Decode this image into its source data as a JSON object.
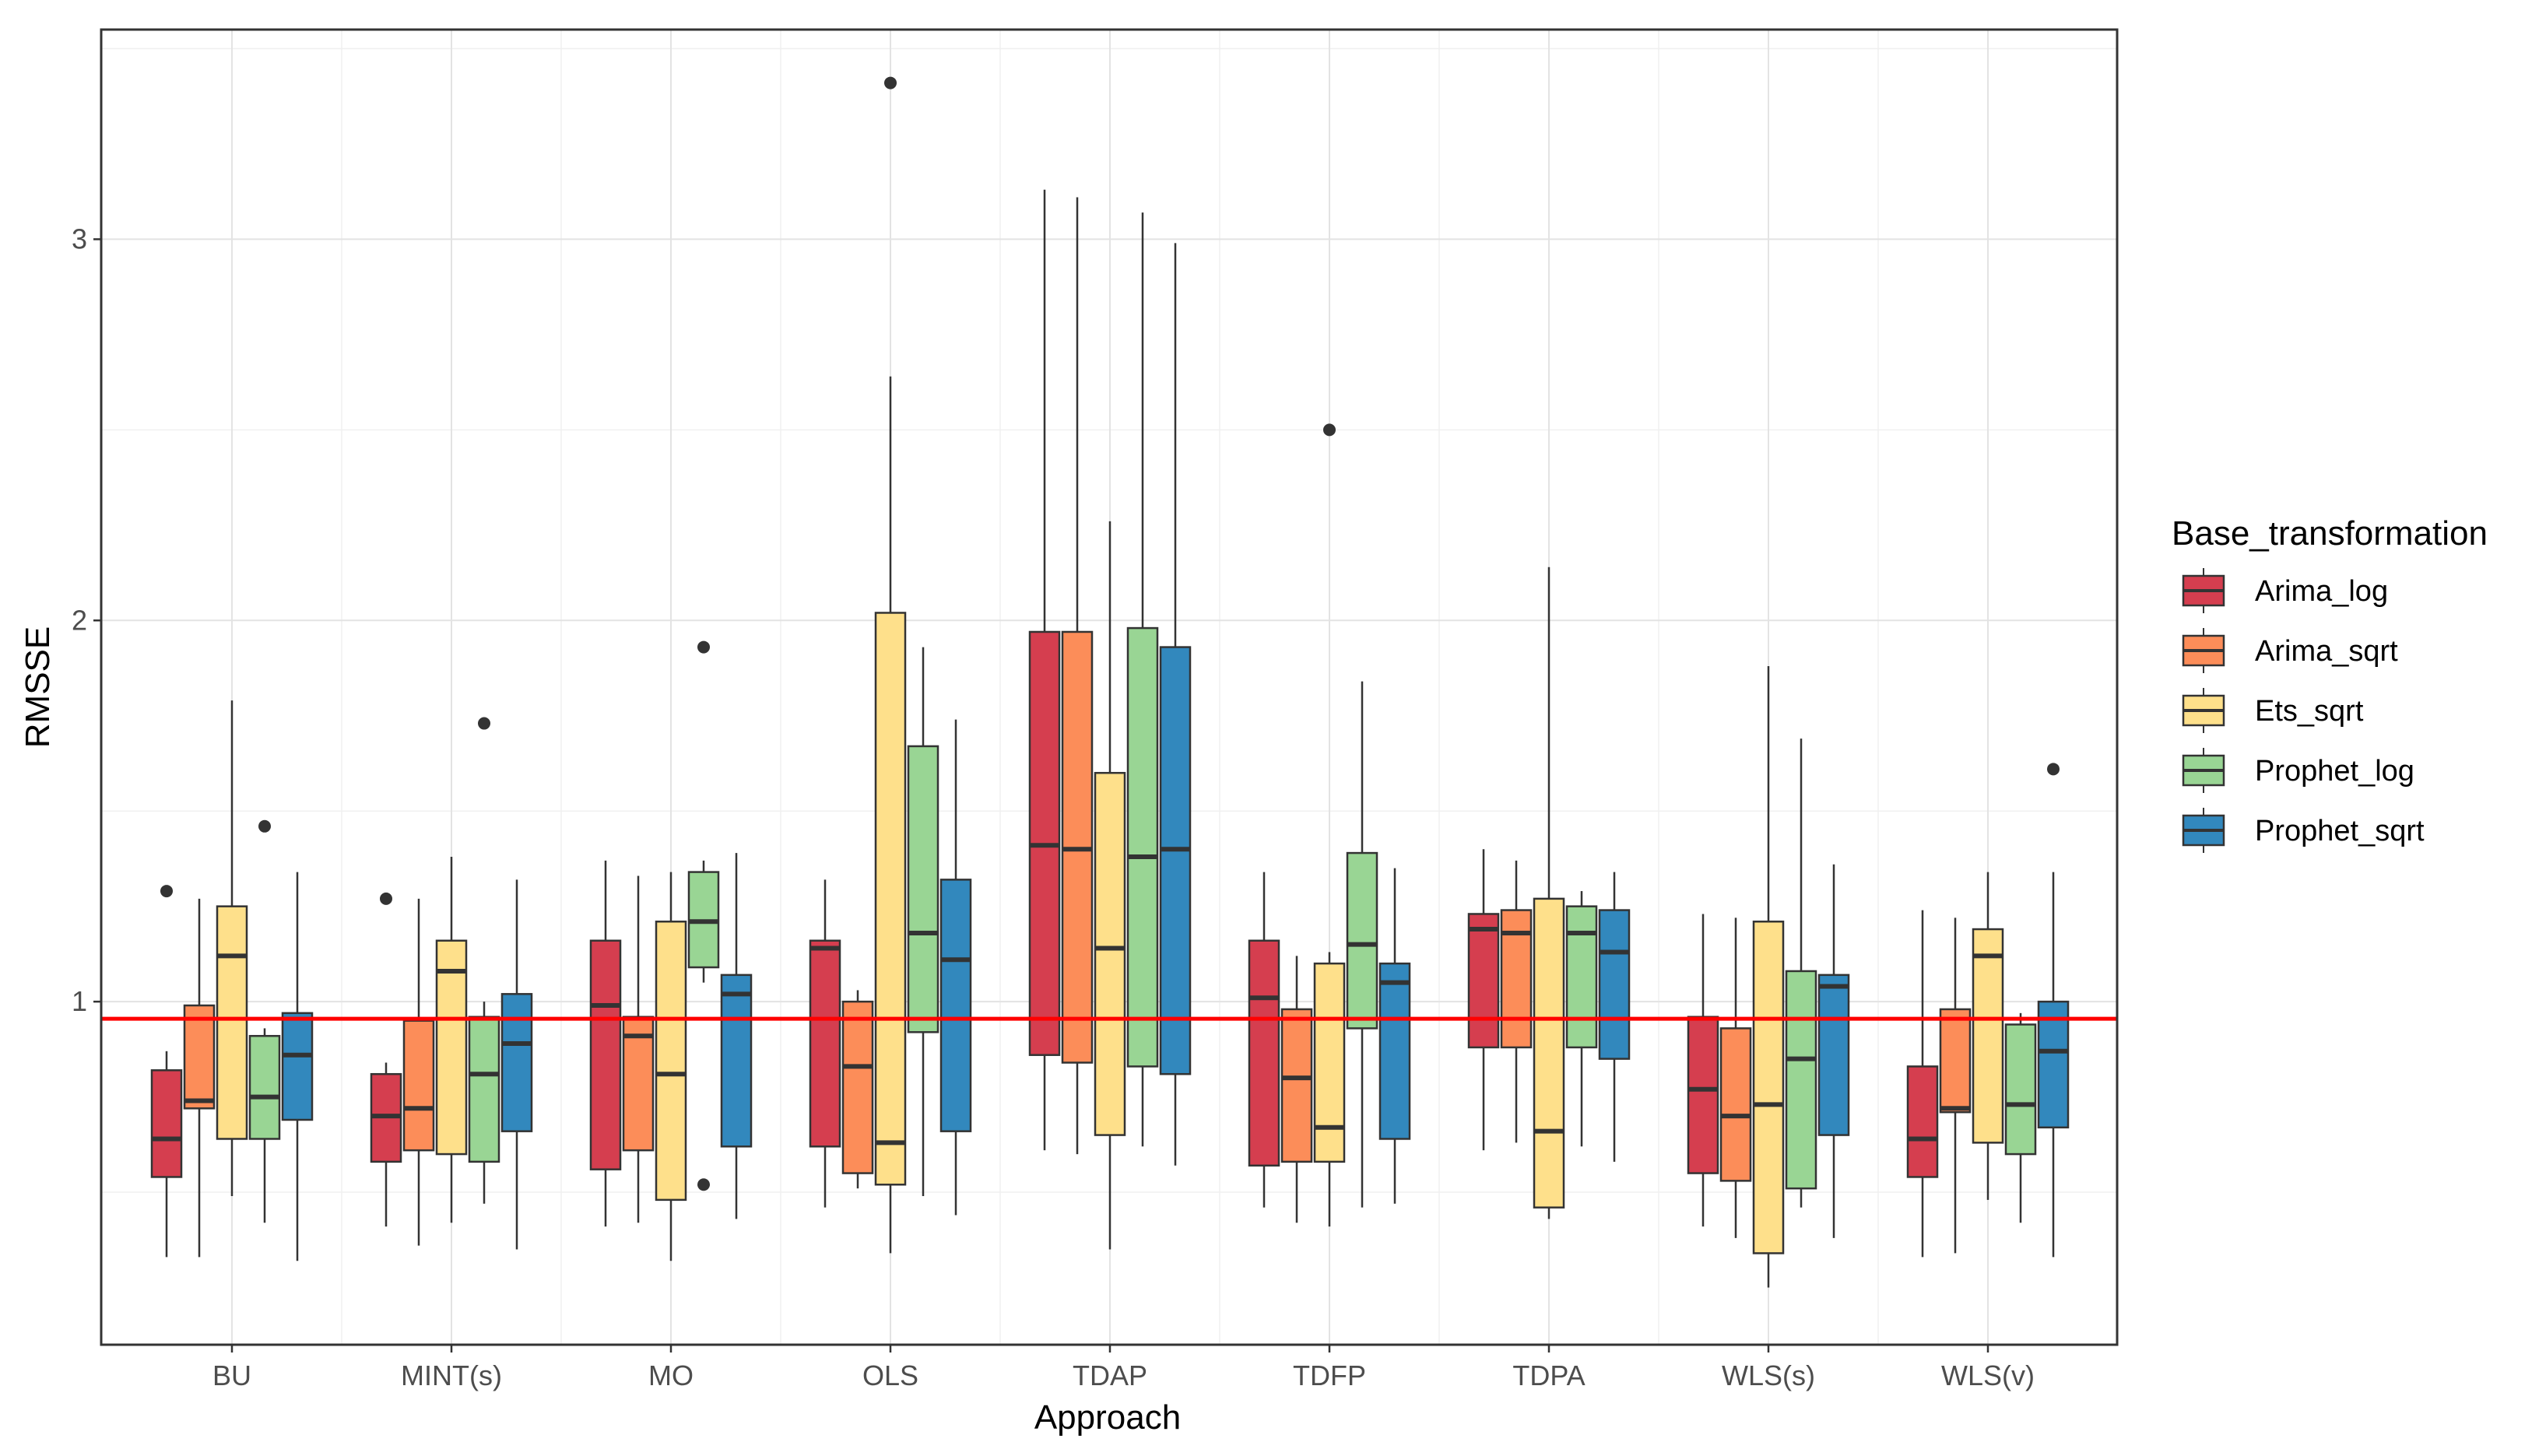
{
  "chart_data": {
    "type": "boxplot",
    "title": "",
    "xlabel": "Approach",
    "ylabel": "RMSSE",
    "legend_title": "Base_transformation",
    "legend_position": "right",
    "reference_line": {
      "y": 0.955,
      "color": "#ff0000"
    },
    "ylim": [
      0.1,
      3.55
    ],
    "yticks": [
      1,
      2,
      3
    ],
    "ytick_labels": [
      "1",
      "2",
      "3"
    ],
    "grid": true,
    "categories": [
      "BU",
      "MINT(s)",
      "MO",
      "OLS",
      "TDAP",
      "TDFP",
      "TDPA",
      "WLS(s)",
      "WLS(v)"
    ],
    "series": [
      {
        "name": "Arima_log",
        "color": "#d53e4f",
        "boxes": [
          {
            "min": 0.33,
            "q1": 0.54,
            "median": 0.64,
            "q3": 0.82,
            "max": 0.87,
            "outliers": [
              1.29
            ]
          },
          {
            "min": 0.41,
            "q1": 0.58,
            "median": 0.7,
            "q3": 0.81,
            "max": 0.84,
            "outliers": [
              1.27
            ]
          },
          {
            "min": 0.41,
            "q1": 0.56,
            "median": 0.99,
            "q3": 1.16,
            "max": 1.37,
            "outliers": []
          },
          {
            "min": 0.46,
            "q1": 0.62,
            "median": 1.14,
            "q3": 1.16,
            "max": 1.32,
            "outliers": []
          },
          {
            "min": 0.61,
            "q1": 0.86,
            "median": 1.41,
            "q3": 1.97,
            "max": 3.13,
            "outliers": []
          },
          {
            "min": 0.46,
            "q1": 0.57,
            "median": 1.01,
            "q3": 1.16,
            "max": 1.34,
            "outliers": []
          },
          {
            "min": 0.61,
            "q1": 0.88,
            "median": 1.19,
            "q3": 1.23,
            "max": 1.4,
            "outliers": []
          },
          {
            "min": 0.41,
            "q1": 0.55,
            "median": 0.77,
            "q3": 0.96,
            "max": 1.23,
            "outliers": []
          },
          {
            "min": 0.33,
            "q1": 0.54,
            "median": 0.64,
            "q3": 0.83,
            "max": 1.24,
            "outliers": []
          }
        ]
      },
      {
        "name": "Arima_sqrt",
        "color": "#fc8d59",
        "boxes": [
          {
            "min": 0.33,
            "q1": 0.72,
            "median": 0.74,
            "q3": 0.99,
            "max": 1.27,
            "outliers": []
          },
          {
            "min": 0.36,
            "q1": 0.61,
            "median": 0.72,
            "q3": 0.95,
            "max": 1.27,
            "outliers": []
          },
          {
            "min": 0.42,
            "q1": 0.61,
            "median": 0.91,
            "q3": 0.96,
            "max": 1.33,
            "outliers": []
          },
          {
            "min": 0.51,
            "q1": 0.55,
            "median": 0.83,
            "q3": 1.0,
            "max": 1.03,
            "outliers": []
          },
          {
            "min": 0.6,
            "q1": 0.84,
            "median": 1.4,
            "q3": 1.97,
            "max": 3.11,
            "outliers": []
          },
          {
            "min": 0.42,
            "q1": 0.58,
            "median": 0.8,
            "q3": 0.98,
            "max": 1.12,
            "outliers": []
          },
          {
            "min": 0.63,
            "q1": 0.88,
            "median": 1.18,
            "q3": 1.24,
            "max": 1.37,
            "outliers": []
          },
          {
            "min": 0.38,
            "q1": 0.53,
            "median": 0.7,
            "q3": 0.93,
            "max": 1.22,
            "outliers": []
          },
          {
            "min": 0.34,
            "q1": 0.71,
            "median": 0.72,
            "q3": 0.98,
            "max": 1.22,
            "outliers": []
          }
        ]
      },
      {
        "name": "Ets_sqrt",
        "color": "#fee08b",
        "boxes": [
          {
            "min": 0.49,
            "q1": 0.64,
            "median": 1.12,
            "q3": 1.25,
            "max": 1.79,
            "outliers": []
          },
          {
            "min": 0.42,
            "q1": 0.6,
            "median": 1.08,
            "q3": 1.16,
            "max": 1.38,
            "outliers": []
          },
          {
            "min": 0.32,
            "q1": 0.48,
            "median": 0.81,
            "q3": 1.21,
            "max": 1.34,
            "outliers": []
          },
          {
            "min": 0.34,
            "q1": 0.52,
            "median": 0.63,
            "q3": 2.02,
            "max": 2.64,
            "outliers": [
              3.41
            ]
          },
          {
            "min": 0.35,
            "q1": 0.65,
            "median": 1.14,
            "q3": 1.6,
            "max": 2.26,
            "outliers": []
          },
          {
            "min": 0.41,
            "q1": 0.58,
            "median": 0.67,
            "q3": 1.1,
            "max": 1.13,
            "outliers": [
              2.5
            ]
          },
          {
            "min": 0.43,
            "q1": 0.46,
            "median": 0.66,
            "q3": 1.27,
            "max": 2.14,
            "outliers": []
          },
          {
            "min": 0.25,
            "q1": 0.34,
            "median": 0.73,
            "q3": 1.21,
            "max": 1.88,
            "outliers": []
          },
          {
            "min": 0.48,
            "q1": 0.63,
            "median": 1.12,
            "q3": 1.19,
            "max": 1.34,
            "outliers": []
          }
        ]
      },
      {
        "name": "Prophet_log",
        "color": "#99d594",
        "boxes": [
          {
            "min": 0.42,
            "q1": 0.64,
            "median": 0.75,
            "q3": 0.91,
            "max": 0.93,
            "outliers": [
              1.46
            ]
          },
          {
            "min": 0.47,
            "q1": 0.58,
            "median": 0.81,
            "q3": 0.96,
            "max": 1.0,
            "outliers": [
              1.73
            ]
          },
          {
            "min": 1.05,
            "q1": 1.09,
            "median": 1.21,
            "q3": 1.34,
            "max": 1.37,
            "outliers": [
              0.52,
              1.93
            ]
          },
          {
            "min": 0.49,
            "q1": 0.92,
            "median": 1.18,
            "q3": 1.67,
            "max": 1.93,
            "outliers": []
          },
          {
            "min": 0.62,
            "q1": 0.83,
            "median": 1.38,
            "q3": 1.98,
            "max": 3.07,
            "outliers": []
          },
          {
            "min": 0.46,
            "q1": 0.93,
            "median": 1.15,
            "q3": 1.39,
            "max": 1.84,
            "outliers": []
          },
          {
            "min": 0.62,
            "q1": 0.88,
            "median": 1.18,
            "q3": 1.25,
            "max": 1.29,
            "outliers": []
          },
          {
            "min": 0.46,
            "q1": 0.51,
            "median": 0.85,
            "q3": 1.08,
            "max": 1.69,
            "outliers": []
          },
          {
            "min": 0.42,
            "q1": 0.6,
            "median": 0.73,
            "q3": 0.94,
            "max": 0.97,
            "outliers": []
          }
        ]
      },
      {
        "name": "Prophet_sqrt",
        "color": "#3288bd",
        "boxes": [
          {
            "min": 0.32,
            "q1": 0.69,
            "median": 0.86,
            "q3": 0.97,
            "max": 1.34,
            "outliers": []
          },
          {
            "min": 0.35,
            "q1": 0.66,
            "median": 0.89,
            "q3": 1.02,
            "max": 1.32,
            "outliers": []
          },
          {
            "min": 0.43,
            "q1": 0.62,
            "median": 1.02,
            "q3": 1.07,
            "max": 1.39,
            "outliers": []
          },
          {
            "min": 0.44,
            "q1": 0.66,
            "median": 1.11,
            "q3": 1.32,
            "max": 1.74,
            "outliers": []
          },
          {
            "min": 0.57,
            "q1": 0.81,
            "median": 1.4,
            "q3": 1.93,
            "max": 2.99,
            "outliers": []
          },
          {
            "min": 0.47,
            "q1": 0.64,
            "median": 1.05,
            "q3": 1.1,
            "max": 1.35,
            "outliers": []
          },
          {
            "min": 0.58,
            "q1": 0.85,
            "median": 1.13,
            "q3": 1.24,
            "max": 1.34,
            "outliers": []
          },
          {
            "min": 0.38,
            "q1": 0.65,
            "median": 1.04,
            "q3": 1.07,
            "max": 1.36,
            "outliers": []
          },
          {
            "min": 0.33,
            "q1": 0.67,
            "median": 0.87,
            "q3": 1.0,
            "max": 1.34,
            "outliers": [
              1.61
            ]
          }
        ]
      }
    ]
  }
}
